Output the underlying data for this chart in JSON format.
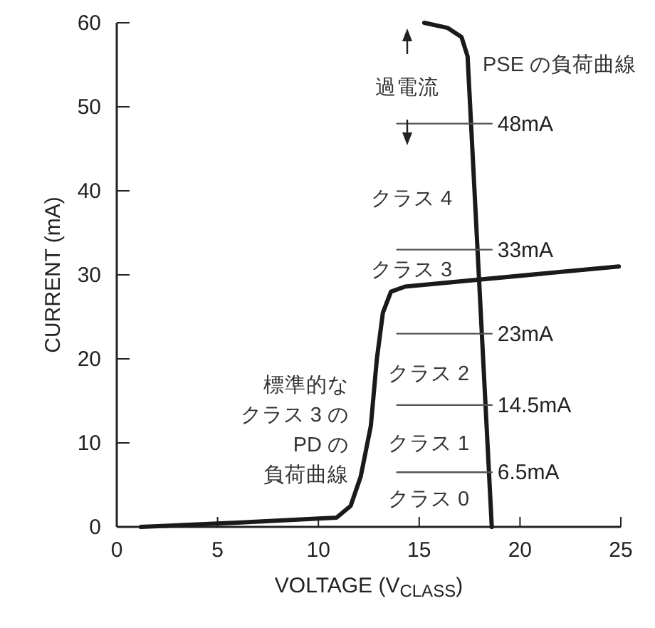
{
  "chart_data": {
    "type": "line",
    "xlabel": "VOLTAGE (V$_{CLASS}$)",
    "ylabel": "CURRENT (mA)",
    "xlim": [
      0,
      25
    ],
    "xticks": [
      0,
      5,
      10,
      15,
      20,
      25
    ],
    "ylim": [
      0,
      60
    ],
    "yticks": [
      0,
      10,
      20,
      30,
      40,
      50,
      60
    ],
    "grid": false,
    "series": [
      {
        "color": "#1a1a1a",
        "x": [
          1.2,
          6,
          10.9,
          11.6,
          12.1,
          12.6,
          12.9,
          13.2,
          13.6,
          14.3,
          24.9
        ],
        "values": [
          0,
          0.5,
          1.1,
          2.5,
          6,
          12,
          20,
          25.5,
          28,
          28.6,
          31
        ]
      },
      {
        "color": "#1a1a1a",
        "x": [
          15.25,
          16.4,
          17.1,
          17.4,
          18.6
        ],
        "values": [
          60,
          59.4,
          58.3,
          56,
          0
        ]
      },
      {
        "name": "48mA",
        "color": "#555555",
        "x": [
          13.9,
          18.6
        ],
        "values": [
          48,
          48
        ]
      },
      {
        "name": "33mA",
        "color": "#555555",
        "x": [
          13.9,
          18.6
        ],
        "values": [
          33,
          33
        ]
      },
      {
        "name": "23mA",
        "color": "#555555",
        "x": [
          13.9,
          18.6
        ],
        "values": [
          23,
          23
        ]
      },
      {
        "name": "14.5mA",
        "color": "#555555",
        "x": [
          13.9,
          18.6
        ],
        "values": [
          14.5,
          14.5
        ]
      },
      {
        "name": "6.5mA",
        "color": "#555555",
        "x": [
          13.9,
          18.6
        ],
        "values": [
          6.5,
          6.5
        ]
      }
    ],
    "annotations": [
      "過電流",
      "PSE の負荷曲線",
      "クラス 4",
      "クラス 3",
      "クラス 2",
      "クラス 1",
      "クラス 0",
      "標準的な",
      "クラス 3 の",
      "PD の",
      "負荷曲線"
    ]
  }
}
